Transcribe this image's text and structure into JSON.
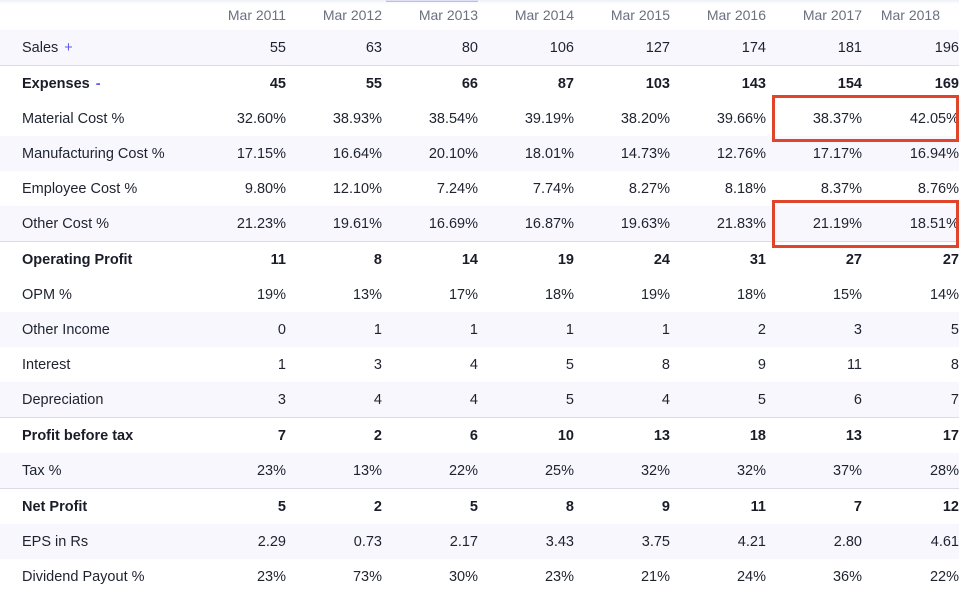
{
  "columns": [
    "Mar 2011",
    "Mar 2012",
    "Mar 2013",
    "Mar 2014",
    "Mar 2015",
    "Mar 2016",
    "Mar 2017",
    "Mar 2018"
  ],
  "active_column": 2,
  "rows": [
    {
      "label": "Sales",
      "toggle": "+",
      "values": [
        "55",
        "63",
        "80",
        "106",
        "127",
        "174",
        "181",
        "196"
      ]
    },
    {
      "label": "Expenses",
      "toggle": "-",
      "values": [
        "45",
        "55",
        "66",
        "87",
        "103",
        "143",
        "154",
        "169"
      ]
    },
    {
      "label": "Material Cost %",
      "values": [
        "32.60%",
        "38.93%",
        "38.54%",
        "39.19%",
        "38.20%",
        "39.66%",
        "38.37%",
        "42.05%"
      ]
    },
    {
      "label": "Manufacturing Cost %",
      "values": [
        "17.15%",
        "16.64%",
        "20.10%",
        "18.01%",
        "14.73%",
        "12.76%",
        "17.17%",
        "16.94%"
      ]
    },
    {
      "label": "Employee Cost %",
      "values": [
        "9.80%",
        "12.10%",
        "7.24%",
        "7.74%",
        "8.27%",
        "8.18%",
        "8.37%",
        "8.76%"
      ]
    },
    {
      "label": "Other Cost %",
      "values": [
        "21.23%",
        "19.61%",
        "16.69%",
        "16.87%",
        "19.63%",
        "21.83%",
        "21.19%",
        "18.51%"
      ]
    },
    {
      "label": "Operating Profit",
      "values": [
        "11",
        "8",
        "14",
        "19",
        "24",
        "31",
        "27",
        "27"
      ]
    },
    {
      "label": "OPM %",
      "values": [
        "19%",
        "13%",
        "17%",
        "18%",
        "19%",
        "18%",
        "15%",
        "14%"
      ]
    },
    {
      "label": "Other Income",
      "values": [
        "0",
        "1",
        "1",
        "1",
        "1",
        "2",
        "3",
        "5"
      ]
    },
    {
      "label": "Interest",
      "values": [
        "1",
        "3",
        "4",
        "5",
        "8",
        "9",
        "11",
        "8"
      ]
    },
    {
      "label": "Depreciation",
      "values": [
        "3",
        "4",
        "4",
        "5",
        "4",
        "5",
        "6",
        "7"
      ]
    },
    {
      "label": "Profit before tax",
      "values": [
        "7",
        "2",
        "6",
        "10",
        "13",
        "18",
        "13",
        "17"
      ]
    },
    {
      "label": "Tax %",
      "values": [
        "23%",
        "13%",
        "22%",
        "25%",
        "32%",
        "32%",
        "37%",
        "28%"
      ]
    },
    {
      "label": "Net Profit",
      "values": [
        "5",
        "2",
        "5",
        "8",
        "9",
        "11",
        "7",
        "12"
      ]
    },
    {
      "label": "EPS in Rs",
      "values": [
        "2.29",
        "0.73",
        "2.17",
        "3.43",
        "3.75",
        "4.21",
        "2.80",
        "4.61"
      ]
    },
    {
      "label": "Dividend Payout %",
      "values": [
        "23%",
        "73%",
        "30%",
        "23%",
        "21%",
        "24%",
        "36%",
        "22%"
      ]
    }
  ],
  "highlight_color": "#e0452c",
  "accent_color": "#5b5bf0"
}
